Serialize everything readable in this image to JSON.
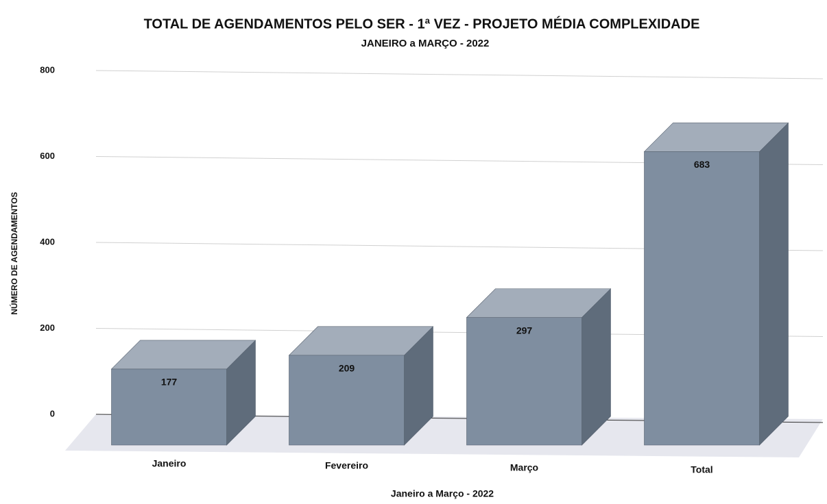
{
  "chart_data": {
    "type": "bar3d",
    "title": "TOTAL DE AGENDAMENTOS PELO SER - 1ª VEZ - PROJETO MÉDIA COMPLEXIDADE",
    "subtitle": "JANEIRO a MARÇO - 2022",
    "y_label": "NÚMERO DE AGENDAMENTOS",
    "x_label": "Janeiro a Março - 2022",
    "categories": [
      "Janeiro",
      "Fevereiro",
      "Março",
      "Total"
    ],
    "values": [
      177,
      209,
      297,
      683
    ],
    "color": "#7f8ea0",
    "ylim": [
      0,
      800
    ],
    "yticks": [
      0,
      200,
      400,
      600,
      800
    ],
    "grid": true
  }
}
